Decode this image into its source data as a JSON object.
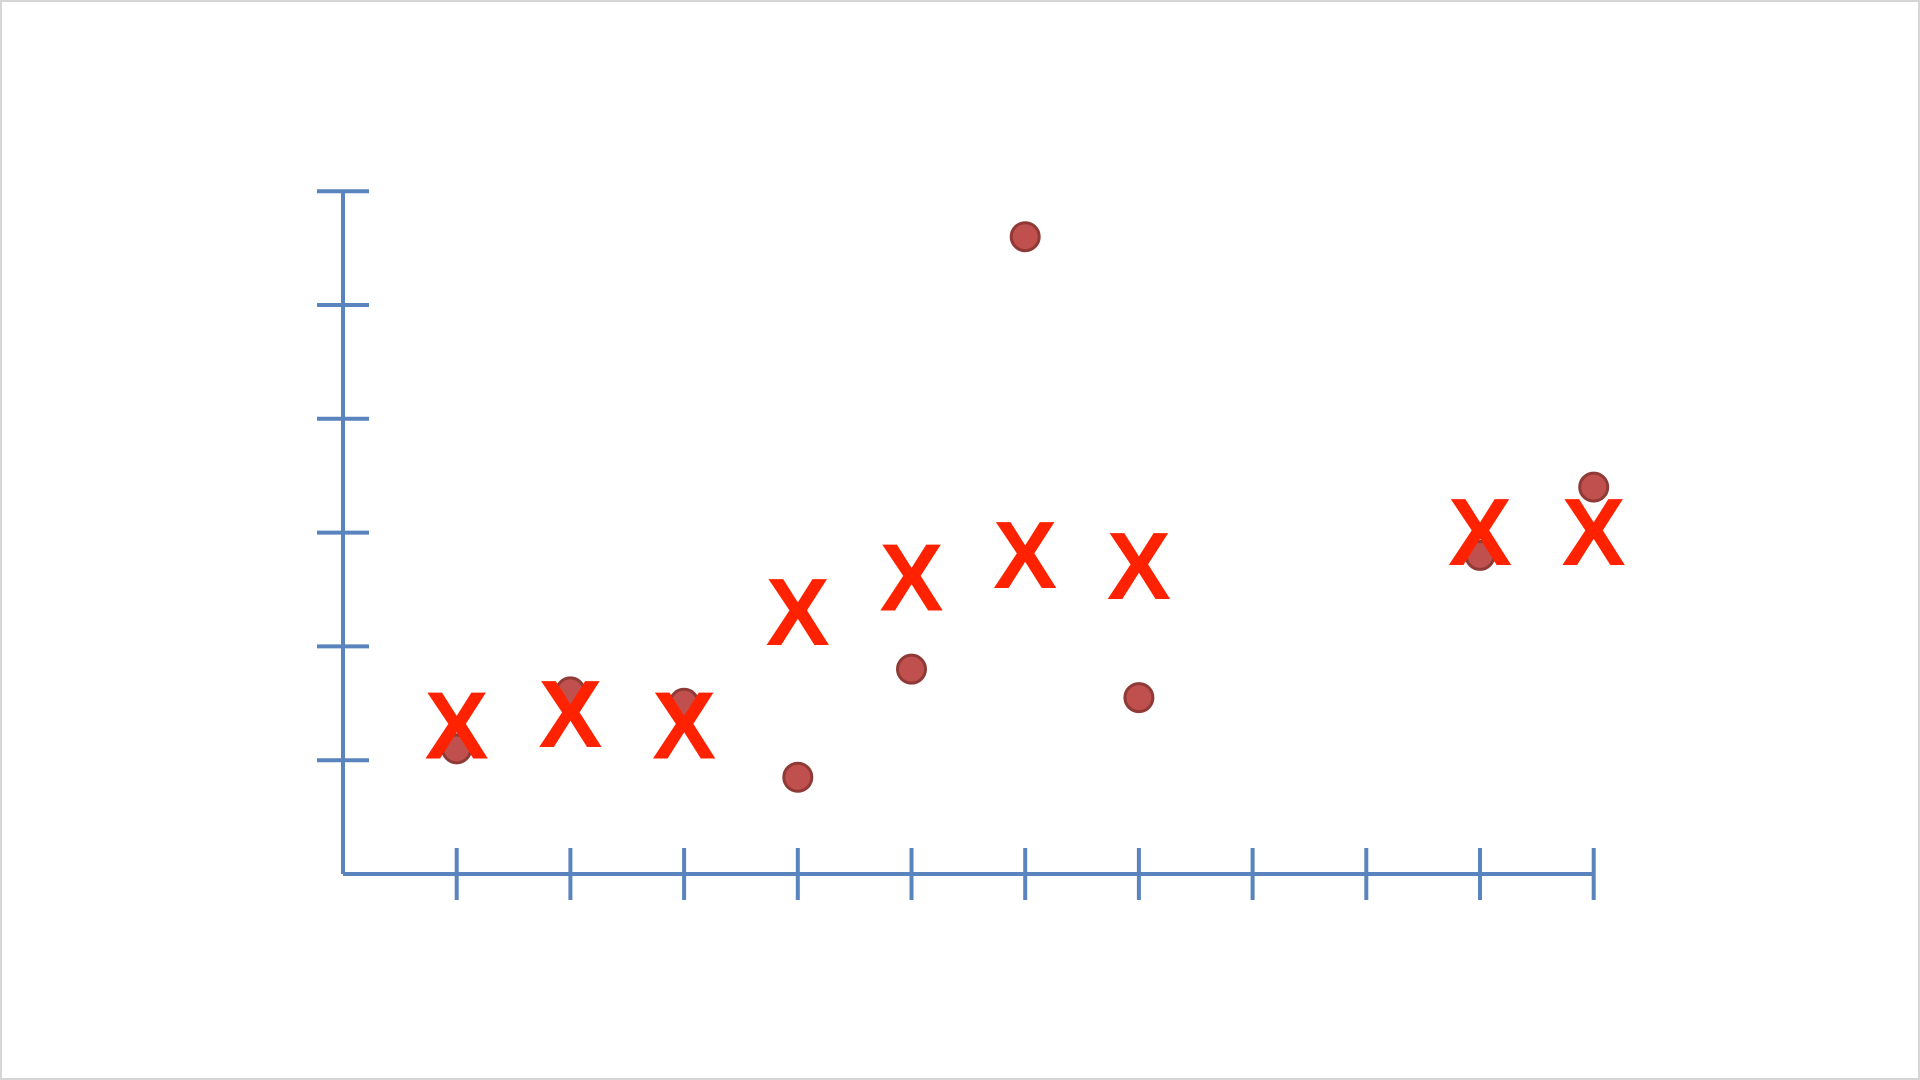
{
  "chart_data": {
    "type": "scatter",
    "title": "",
    "xlabel": "",
    "ylabel": "",
    "xlim": [
      0,
      11
    ],
    "ylim": [
      0,
      6
    ],
    "x_ticks": [
      1,
      2,
      3,
      4,
      5,
      6,
      7,
      8,
      9,
      10,
      11
    ],
    "y_ticks": [
      1,
      2,
      3,
      4,
      5,
      6
    ],
    "grid": false,
    "legend": "none",
    "series": [
      {
        "marker": "circle",
        "color": "#c0504d",
        "points": [
          {
            "x": 1,
            "y": 1.1
          },
          {
            "x": 2,
            "y": 1.6
          },
          {
            "x": 3,
            "y": 1.5
          },
          {
            "x": 4,
            "y": 0.85
          },
          {
            "x": 5,
            "y": 1.8
          },
          {
            "x": 6,
            "y": 5.6
          },
          {
            "x": 7,
            "y": 1.55
          },
          {
            "x": 10,
            "y": 2.8
          },
          {
            "x": 11,
            "y": 3.4
          }
        ]
      },
      {
        "marker": "X",
        "color": "#ff2200",
        "points": [
          {
            "x": 1,
            "y": 1.3
          },
          {
            "x": 2,
            "y": 1.4
          },
          {
            "x": 3,
            "y": 1.3
          },
          {
            "x": 4,
            "y": 2.3
          },
          {
            "x": 5,
            "y": 2.6
          },
          {
            "x": 6,
            "y": 2.8
          },
          {
            "x": 7,
            "y": 2.7
          },
          {
            "x": 10,
            "y": 3.0
          },
          {
            "x": 11,
            "y": 3.0
          }
        ]
      }
    ]
  },
  "axis_color": "#5a84bd",
  "dot_stroke": "#8f3a36",
  "marker_glyph": "X"
}
